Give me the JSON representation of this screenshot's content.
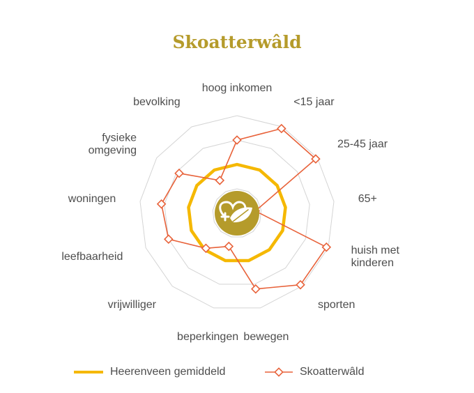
{
  "chart_data": {
    "type": "radar",
    "title": "Skoatterwâld",
    "axes": [
      "hoog inkomen",
      "<15 jaar",
      "25-45 jaar",
      "65+",
      "huish met kinderen",
      "sporten",
      "bewegen",
      "beperkingen",
      "vrijwilliger",
      "leefbaarheid",
      "woningen",
      "fysieke omgeving",
      "bevolking"
    ],
    "axis_label_lines": [
      [
        "hoog inkomen"
      ],
      [
        "<15 jaar"
      ],
      [
        "25-45 jaar"
      ],
      [
        "65+"
      ],
      [
        "huish met",
        "kinderen"
      ],
      [
        "sporten"
      ],
      [
        "bewegen"
      ],
      [
        "beperkingen"
      ],
      [
        "vrijwilliger"
      ],
      [
        "leefbaarheid"
      ],
      [
        "woningen"
      ],
      [
        "fysieke",
        "omgeving"
      ],
      [
        "bevolking"
      ]
    ],
    "series": [
      {
        "name": "Heerenveen gemiddeld",
        "color": "#f5b800",
        "marker": "none",
        "values": [
          0.5,
          0.5,
          0.5,
          0.5,
          0.5,
          0.5,
          0.5,
          0.5,
          0.5,
          0.5,
          0.5,
          0.5,
          0.5
        ]
      },
      {
        "name": "Skoatterwâld",
        "color": "#e8623a",
        "marker": "diamond",
        "values": [
          0.75,
          0.98,
          0.98,
          0.19,
          0.98,
          0.98,
          0.8,
          0.35,
          0.48,
          0.75,
          0.78,
          0.72,
          0.38
        ]
      }
    ],
    "grid_rings": 4,
    "range": [
      0,
      1
    ],
    "center_icon": "health-leaf-icon",
    "center_icon_color": "#b59b2b",
    "legend_position": "bottom"
  }
}
